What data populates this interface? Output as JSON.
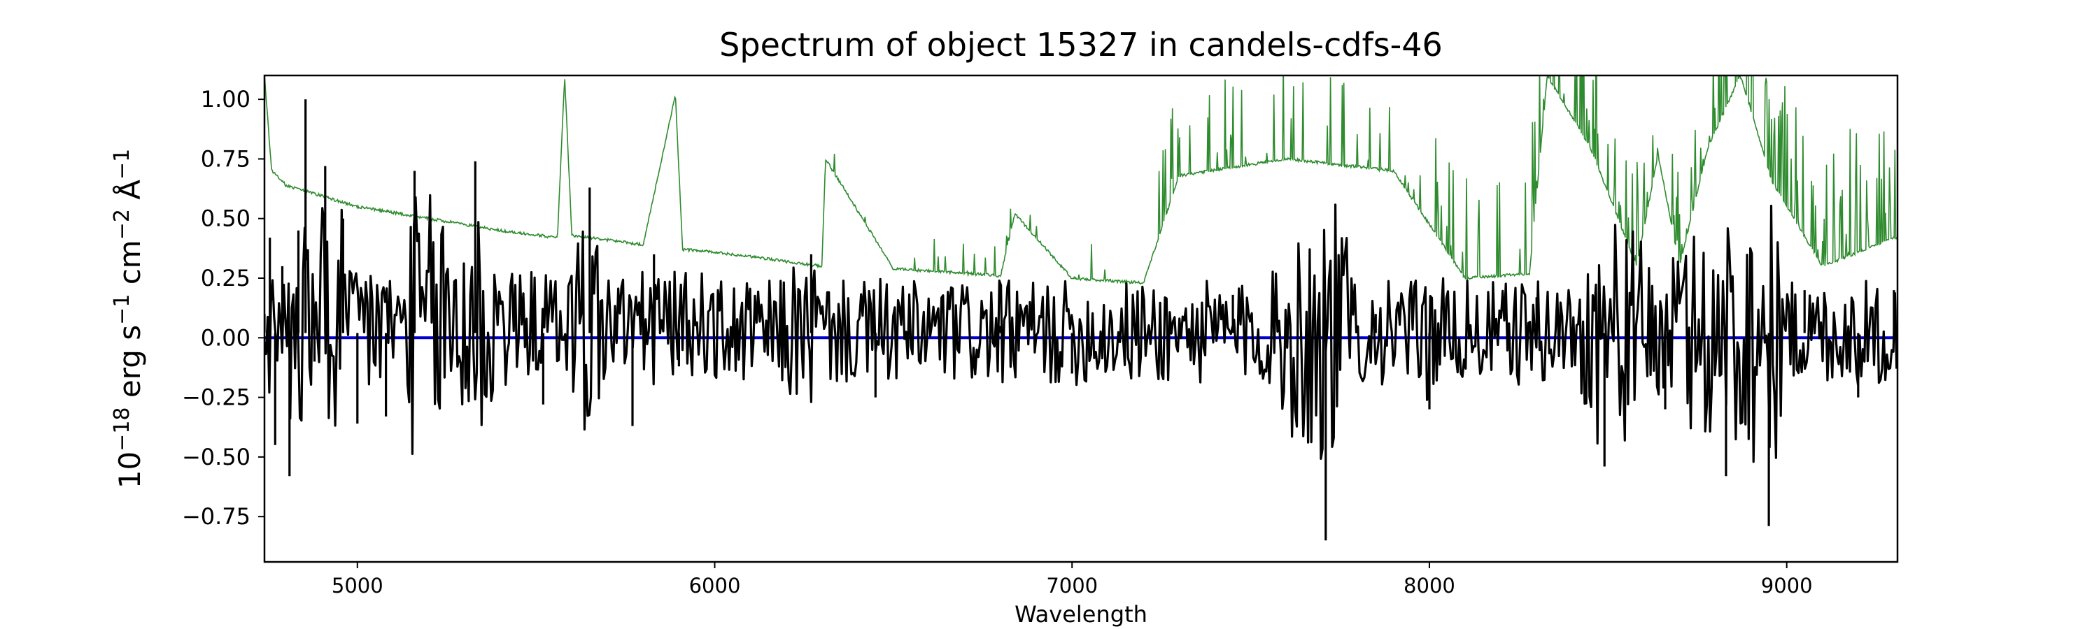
{
  "chart_data": {
    "type": "line",
    "title": "Spectrum of object 15327 in candels-cdfs-46",
    "xlabel": "Wavelength",
    "ylabel": {
      "base": "10",
      "exp1": "−18",
      "unit1": " erg s",
      "exp2": "−1",
      "unit2": " cm",
      "exp3": "−2",
      "unit3": " Å",
      "exp4": "−1"
    },
    "xlim": [
      4740,
      9310
    ],
    "ylim": [
      -0.94,
      1.1
    ],
    "xticks": [
      5000,
      6000,
      7000,
      8000,
      9000
    ],
    "yticks": [
      -0.75,
      -0.5,
      -0.25,
      0.0,
      0.25,
      0.5,
      0.75,
      1.0
    ],
    "ytick_labels": [
      "−0.75",
      "−0.50",
      "−0.25",
      "0.00",
      "0.25",
      "0.50",
      "0.75",
      "1.00"
    ],
    "grid": false,
    "series": [
      {
        "key": "flux",
        "color": "#000000",
        "description_points": [
          [
            4740,
            0.1
          ],
          [
            4755,
            0.42
          ],
          [
            4770,
            -0.45
          ],
          [
            4790,
            0.3
          ],
          [
            4810,
            -0.58
          ],
          [
            4835,
            0.45
          ],
          [
            4855,
            1.0
          ],
          [
            4880,
            -0.1
          ],
          [
            4910,
            0.72
          ],
          [
            4960,
            0.5
          ],
          [
            5000,
            -0.36
          ],
          [
            5080,
            -0.33
          ],
          [
            5160,
            0.7
          ],
          [
            5330,
            0.74
          ],
          [
            5520,
            -0.28
          ],
          [
            5650,
            0.63
          ],
          [
            5770,
            -0.37
          ],
          [
            5830,
            0.35
          ],
          [
            5900,
            -0.12
          ],
          [
            6270,
            0.35
          ],
          [
            6450,
            -0.25
          ],
          [
            6800,
            0.05
          ],
          [
            7000,
            -0.15
          ],
          [
            7450,
            0.18
          ],
          [
            7710,
            -0.85
          ],
          [
            7850,
            0.1
          ],
          [
            8000,
            -0.3
          ],
          [
            8300,
            0.17
          ],
          [
            8490,
            -0.54
          ],
          [
            8660,
            -0.3
          ],
          [
            8830,
            -0.58
          ],
          [
            8950,
            -0.79
          ],
          [
            9050,
            0.2
          ],
          [
            9200,
            -0.25
          ],
          [
            9300,
            0.2
          ]
        ]
      },
      {
        "key": "error",
        "color": "#2e8b2e",
        "description_points": [
          [
            4740,
            1.1
          ],
          [
            4760,
            0.7
          ],
          [
            4800,
            0.64
          ],
          [
            5000,
            0.55
          ],
          [
            5200,
            0.5
          ],
          [
            5400,
            0.45
          ],
          [
            5560,
            0.42
          ],
          [
            5580,
            1.1
          ],
          [
            5600,
            0.43
          ],
          [
            5800,
            0.39
          ],
          [
            5890,
            1.02
          ],
          [
            5910,
            0.37
          ],
          [
            6000,
            0.36
          ],
          [
            6300,
            0.3
          ],
          [
            6310,
            0.75
          ],
          [
            6500,
            0.29
          ],
          [
            6800,
            0.26
          ],
          [
            6840,
            0.52
          ],
          [
            7000,
            0.25
          ],
          [
            7200,
            0.23
          ],
          [
            7300,
            0.68
          ],
          [
            7600,
            0.75
          ],
          [
            7900,
            0.7
          ],
          [
            8100,
            0.25
          ],
          [
            8280,
            0.27
          ],
          [
            8330,
            1.1
          ],
          [
            8450,
            0.8
          ],
          [
            8580,
            0.3
          ],
          [
            8640,
            0.77
          ],
          [
            8700,
            0.3
          ],
          [
            8780,
            0.8
          ],
          [
            8870,
            1.1
          ],
          [
            8960,
            0.65
          ],
          [
            9100,
            0.3
          ],
          [
            9300,
            0.42
          ]
        ]
      },
      {
        "key": "zero",
        "color": "#0000cc",
        "description_points": [
          [
            4740,
            0.0
          ],
          [
            9310,
            0.0
          ]
        ]
      }
    ]
  }
}
